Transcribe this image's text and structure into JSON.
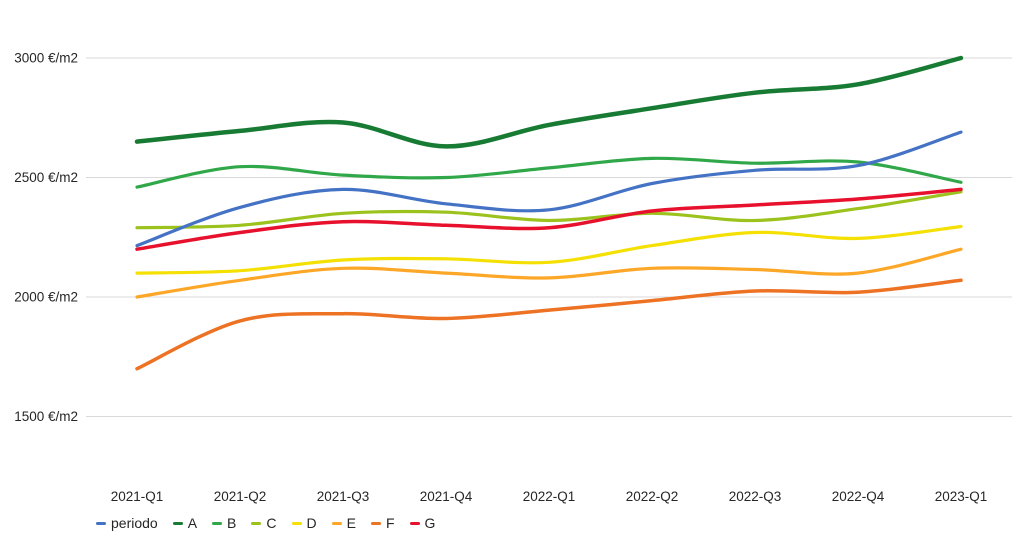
{
  "chart_data": {
    "type": "line",
    "title": "",
    "unit": "€/m2",
    "smoothed": true,
    "grid": true,
    "grid_color": "#d9d9d9",
    "background_color": "#ffffff",
    "text_color": "#262626",
    "legend_position": "bottom-left",
    "categories": [
      "2021-Q1",
      "2021-Q2",
      "2021-Q3",
      "2021-Q4",
      "2022-Q1",
      "2022-Q2",
      "2022-Q3",
      "2022-Q4",
      "2023-Q1"
    ],
    "y_ticks": [
      {
        "value": 3000,
        "label": "3000 €/m2"
      },
      {
        "value": 2500,
        "label": "2500 €/m2"
      },
      {
        "value": 2000,
        "label": "2000 €/m2"
      },
      {
        "value": 1500,
        "label": "1500 €/m2"
      }
    ],
    "ylim": [
      1350,
      3100
    ],
    "series": [
      {
        "name": "periodo",
        "color": "#4472c4",
        "width": 3.2,
        "values": [
          2215,
          2375,
          2450,
          2390,
          2365,
          2475,
          2530,
          2550,
          2690
        ]
      },
      {
        "name": "A",
        "color": "#187b33",
        "width": 4.5,
        "values": [
          2650,
          2695,
          2730,
          2630,
          2720,
          2790,
          2855,
          2890,
          3000
        ]
      },
      {
        "name": "B",
        "color": "#30a849",
        "width": 3.2,
        "values": [
          2460,
          2545,
          2510,
          2500,
          2540,
          2580,
          2560,
          2565,
          2480
        ]
      },
      {
        "name": "C",
        "color": "#9cc21e",
        "width": 3.2,
        "values": [
          2290,
          2300,
          2350,
          2355,
          2320,
          2350,
          2320,
          2370,
          2440
        ]
      },
      {
        "name": "D",
        "color": "#f5e003",
        "width": 3.2,
        "values": [
          2100,
          2110,
          2155,
          2160,
          2145,
          2215,
          2270,
          2245,
          2295
        ]
      },
      {
        "name": "E",
        "color": "#fca728",
        "width": 3.2,
        "values": [
          2000,
          2070,
          2120,
          2100,
          2080,
          2120,
          2115,
          2100,
          2200
        ]
      },
      {
        "name": "F",
        "color": "#ed7223",
        "width": 3.5,
        "values": [
          1700,
          1900,
          1930,
          1910,
          1945,
          1985,
          2025,
          2020,
          2070
        ]
      },
      {
        "name": "G",
        "color": "#e8112d",
        "width": 3.5,
        "values": [
          2200,
          2270,
          2315,
          2300,
          2290,
          2360,
          2385,
          2410,
          2450
        ]
      }
    ],
    "legend_order": [
      "periodo",
      "A",
      "B",
      "C",
      "D",
      "E",
      "F",
      "G"
    ]
  }
}
